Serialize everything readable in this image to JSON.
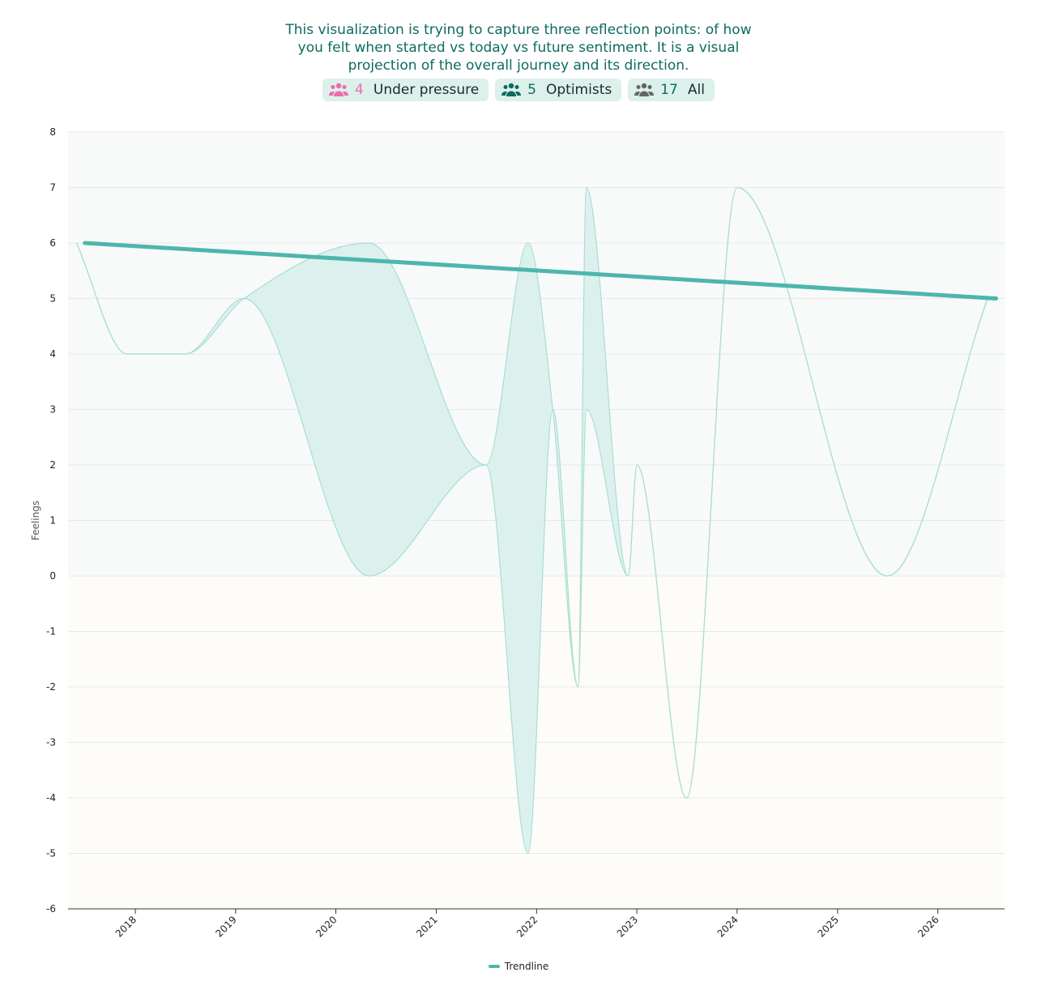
{
  "intro": {
    "text": "This visualization is trying to capture three reflection points: of how you felt when started vs today vs future sentiment. It is a visual projection of the overall journey and its direction."
  },
  "filters": [
    {
      "count": "4",
      "label": "Under pressure",
      "icon": "users-icon",
      "color": "#f06aaf"
    },
    {
      "count": "5",
      "label": "Optimists",
      "icon": "users-icon",
      "color": "#0d6b5e"
    },
    {
      "count": "17",
      "label": "All",
      "icon": "users-icon",
      "color": "#666666"
    }
  ],
  "chart_data": {
    "type": "area",
    "ylabel": "Feelings",
    "ylim": [
      -6,
      8
    ],
    "yticks": [
      8,
      7,
      6,
      5,
      4,
      3,
      2,
      1,
      0,
      -1,
      -2,
      -3,
      -4,
      -5,
      -6
    ],
    "xlim": [
      "2017-05-01",
      "2026-09-01"
    ],
    "xticks": [
      "2018",
      "2019",
      "2020",
      "2021",
      "2022",
      "2023",
      "2024",
      "2025",
      "2026"
    ],
    "legend_position": "bottom",
    "grid": true,
    "colors": {
      "positive_band": "#f7faf9",
      "negative_band": "#fdfcf8",
      "area_fill": "#dcf1ee",
      "area_line": "#a9ddd5",
      "trendline": "#4db6ac"
    },
    "upper_curve": [
      {
        "x": "2017-06-01",
        "y": 6
      },
      {
        "x": "2017-12-01",
        "y": 4
      },
      {
        "x": "2018-07-01",
        "y": 4
      },
      {
        "x": "2019-02-01",
        "y": 5
      },
      {
        "x": "2020-05-01",
        "y": 6
      },
      {
        "x": "2021-07-01",
        "y": 2
      },
      {
        "x": "2021-12-01",
        "y": 6
      },
      {
        "x": "2022-03-01",
        "y": 3
      },
      {
        "x": "2022-06-01",
        "y": -2
      },
      {
        "x": "2022-07-01",
        "y": 7
      },
      {
        "x": "2022-12-01",
        "y": 0
      },
      {
        "x": "2023-01-01",
        "y": 2
      },
      {
        "x": "2023-07-01",
        "y": -4
      },
      {
        "x": "2024-01-01",
        "y": 7
      },
      {
        "x": "2025-07-01",
        "y": 0
      },
      {
        "x": "2026-07-01",
        "y": 5
      }
    ],
    "lower_curve": [
      {
        "x": "2017-06-01",
        "y": 6
      },
      {
        "x": "2017-12-01",
        "y": 4
      },
      {
        "x": "2018-07-01",
        "y": 4
      },
      {
        "x": "2019-02-01",
        "y": 5
      },
      {
        "x": "2020-05-01",
        "y": 0
      },
      {
        "x": "2021-07-01",
        "y": 2
      },
      {
        "x": "2021-12-01",
        "y": -5
      },
      {
        "x": "2022-03-01",
        "y": 3
      },
      {
        "x": "2022-06-01",
        "y": -2
      },
      {
        "x": "2022-07-01",
        "y": 3
      },
      {
        "x": "2022-12-01",
        "y": 0
      },
      {
        "x": "2023-01-01",
        "y": 2
      },
      {
        "x": "2023-07-01",
        "y": -4
      },
      {
        "x": "2024-01-01",
        "y": 7
      },
      {
        "x": "2025-07-01",
        "y": 0
      },
      {
        "x": "2026-07-01",
        "y": 5
      }
    ],
    "series": [
      {
        "name": "Trendline",
        "points": [
          {
            "x": "2017-07-01",
            "y": 6
          },
          {
            "x": "2026-08-01",
            "y": 5
          }
        ]
      }
    ]
  }
}
